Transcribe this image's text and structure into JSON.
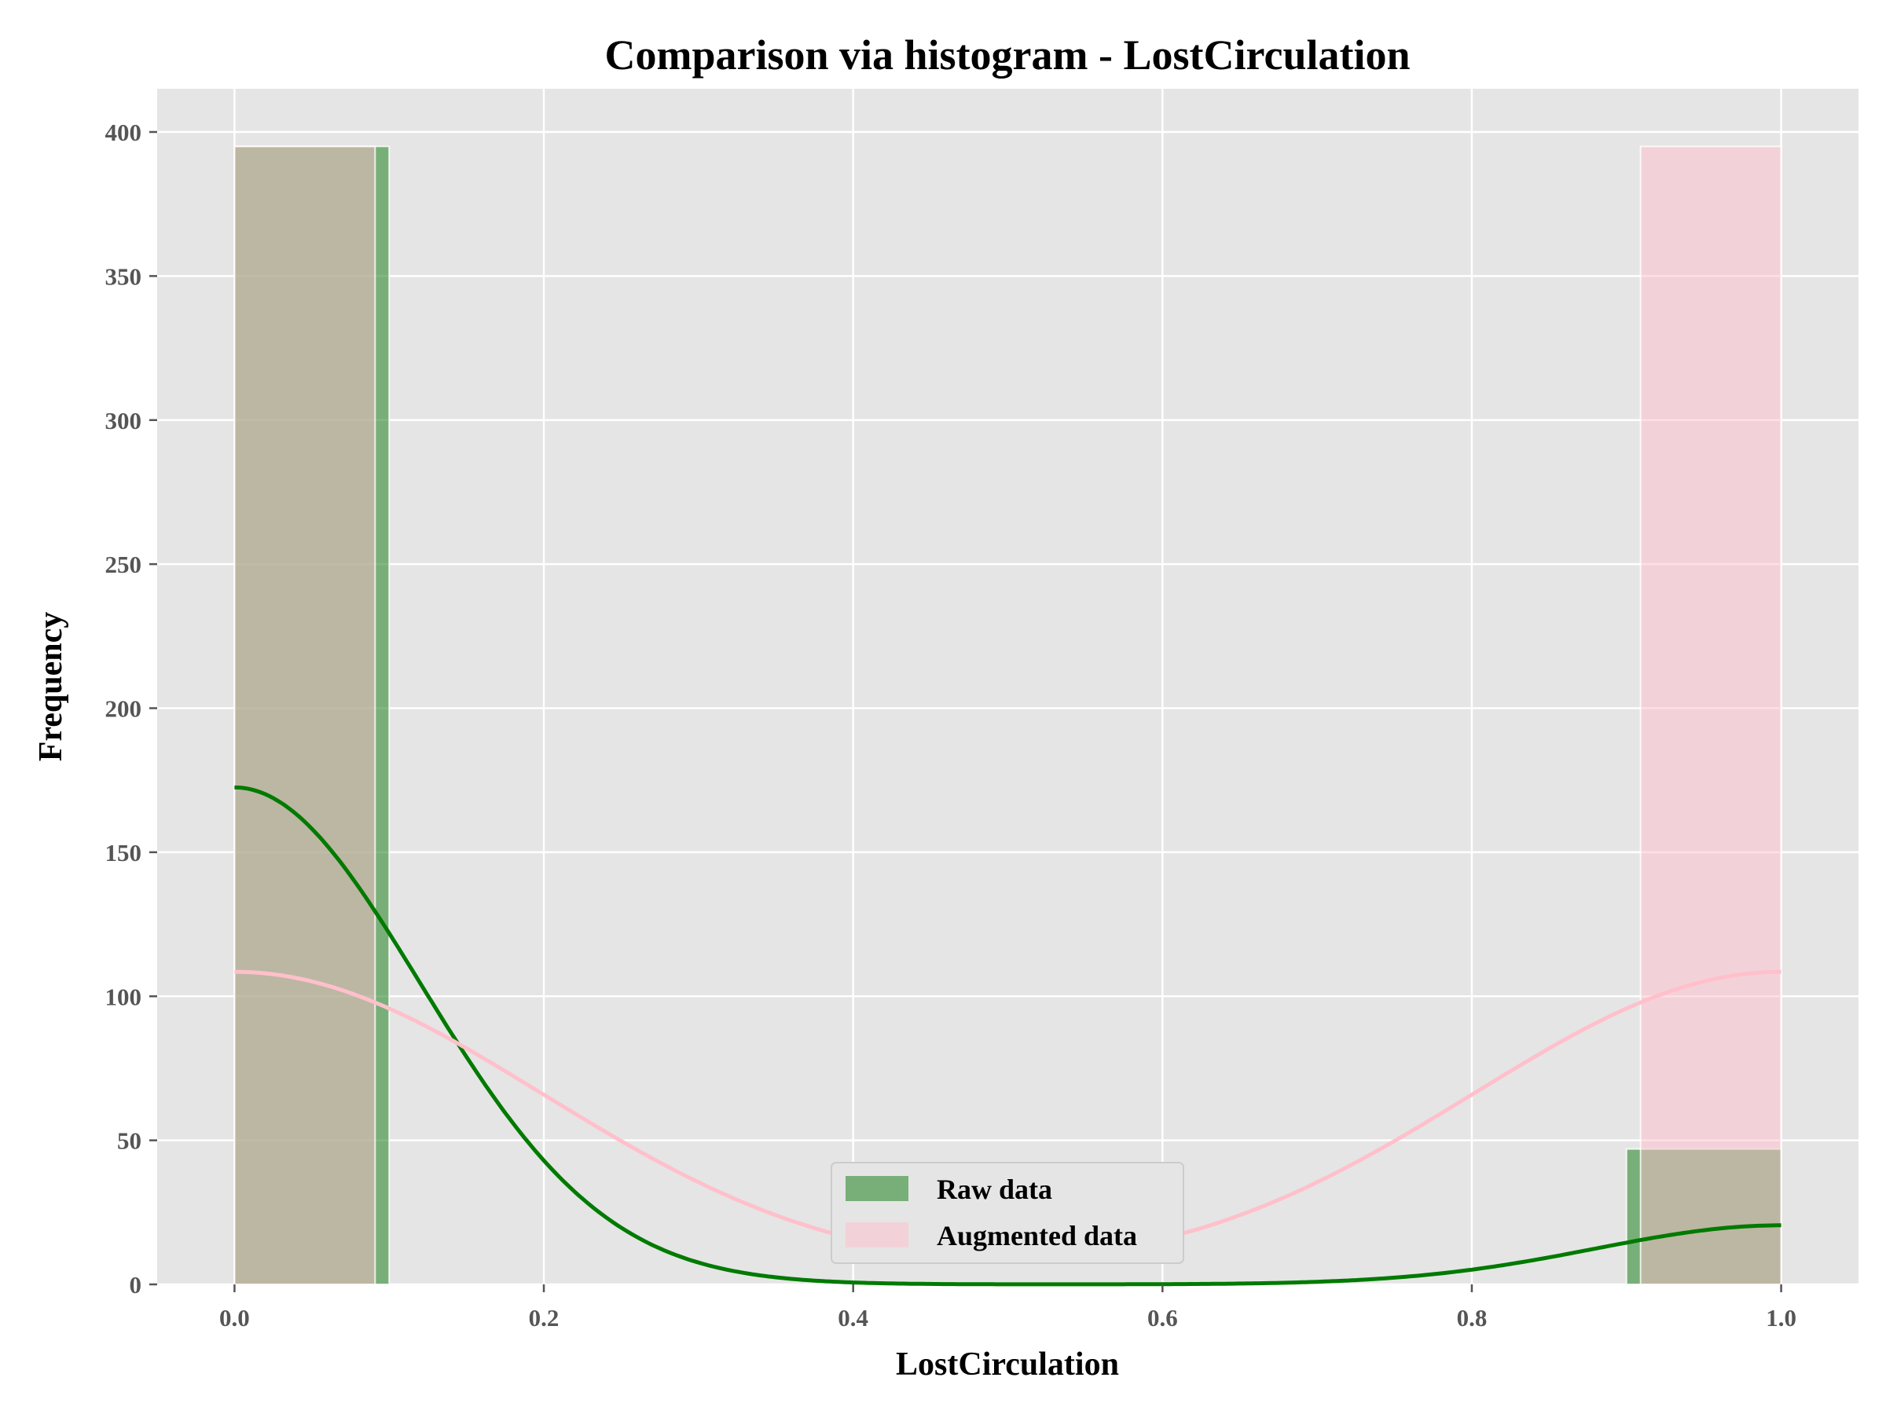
{
  "chart_data": {
    "type": "histogram",
    "title": "Comparison via histogram - LostCirculation",
    "xlabel": "LostCirculation",
    "ylabel": "Frequency",
    "xlim": [
      -0.05,
      1.05
    ],
    "ylim": [
      0,
      415
    ],
    "xticks": [
      0.0,
      0.2,
      0.4,
      0.6,
      0.8,
      1.0
    ],
    "xtick_labels": [
      "0.0",
      "0.2",
      "0.4",
      "0.6",
      "0.8",
      "1.0"
    ],
    "yticks": [
      0,
      50,
      100,
      150,
      200,
      250,
      300,
      350,
      400
    ],
    "ytick_labels": [
      "0",
      "50",
      "100",
      "150",
      "200",
      "250",
      "300",
      "350",
      "400"
    ],
    "grid": true,
    "legend_position": "lower-center",
    "series": [
      {
        "name": "Raw data",
        "color": "#2e8b2e",
        "kde_color": "#007a00",
        "bins": [
          {
            "x0": 0.0,
            "x1": 0.1,
            "count": 395
          },
          {
            "x0": 0.9,
            "x1": 1.0,
            "count": 47
          }
        ],
        "kde": {
          "peaks": [
            {
              "x": 0.0,
              "y": 172.5
            },
            {
              "x": 1.0,
              "y": 20.5
            }
          ],
          "bandwidth": 0.12
        }
      },
      {
        "name": "Augmented data",
        "color": "#ffc0cb",
        "kde_color": "#ffc0cb",
        "bins": [
          {
            "x0": 0.0,
            "x1": 0.0909,
            "count": 395
          },
          {
            "x0": 0.9091,
            "x1": 1.0,
            "count": 395
          }
        ],
        "kde": {
          "peaks": [
            {
              "x": 0.0,
              "y": 108.5
            },
            {
              "x": 1.0,
              "y": 108.5
            }
          ],
          "bandwidth": 0.2
        }
      }
    ]
  }
}
